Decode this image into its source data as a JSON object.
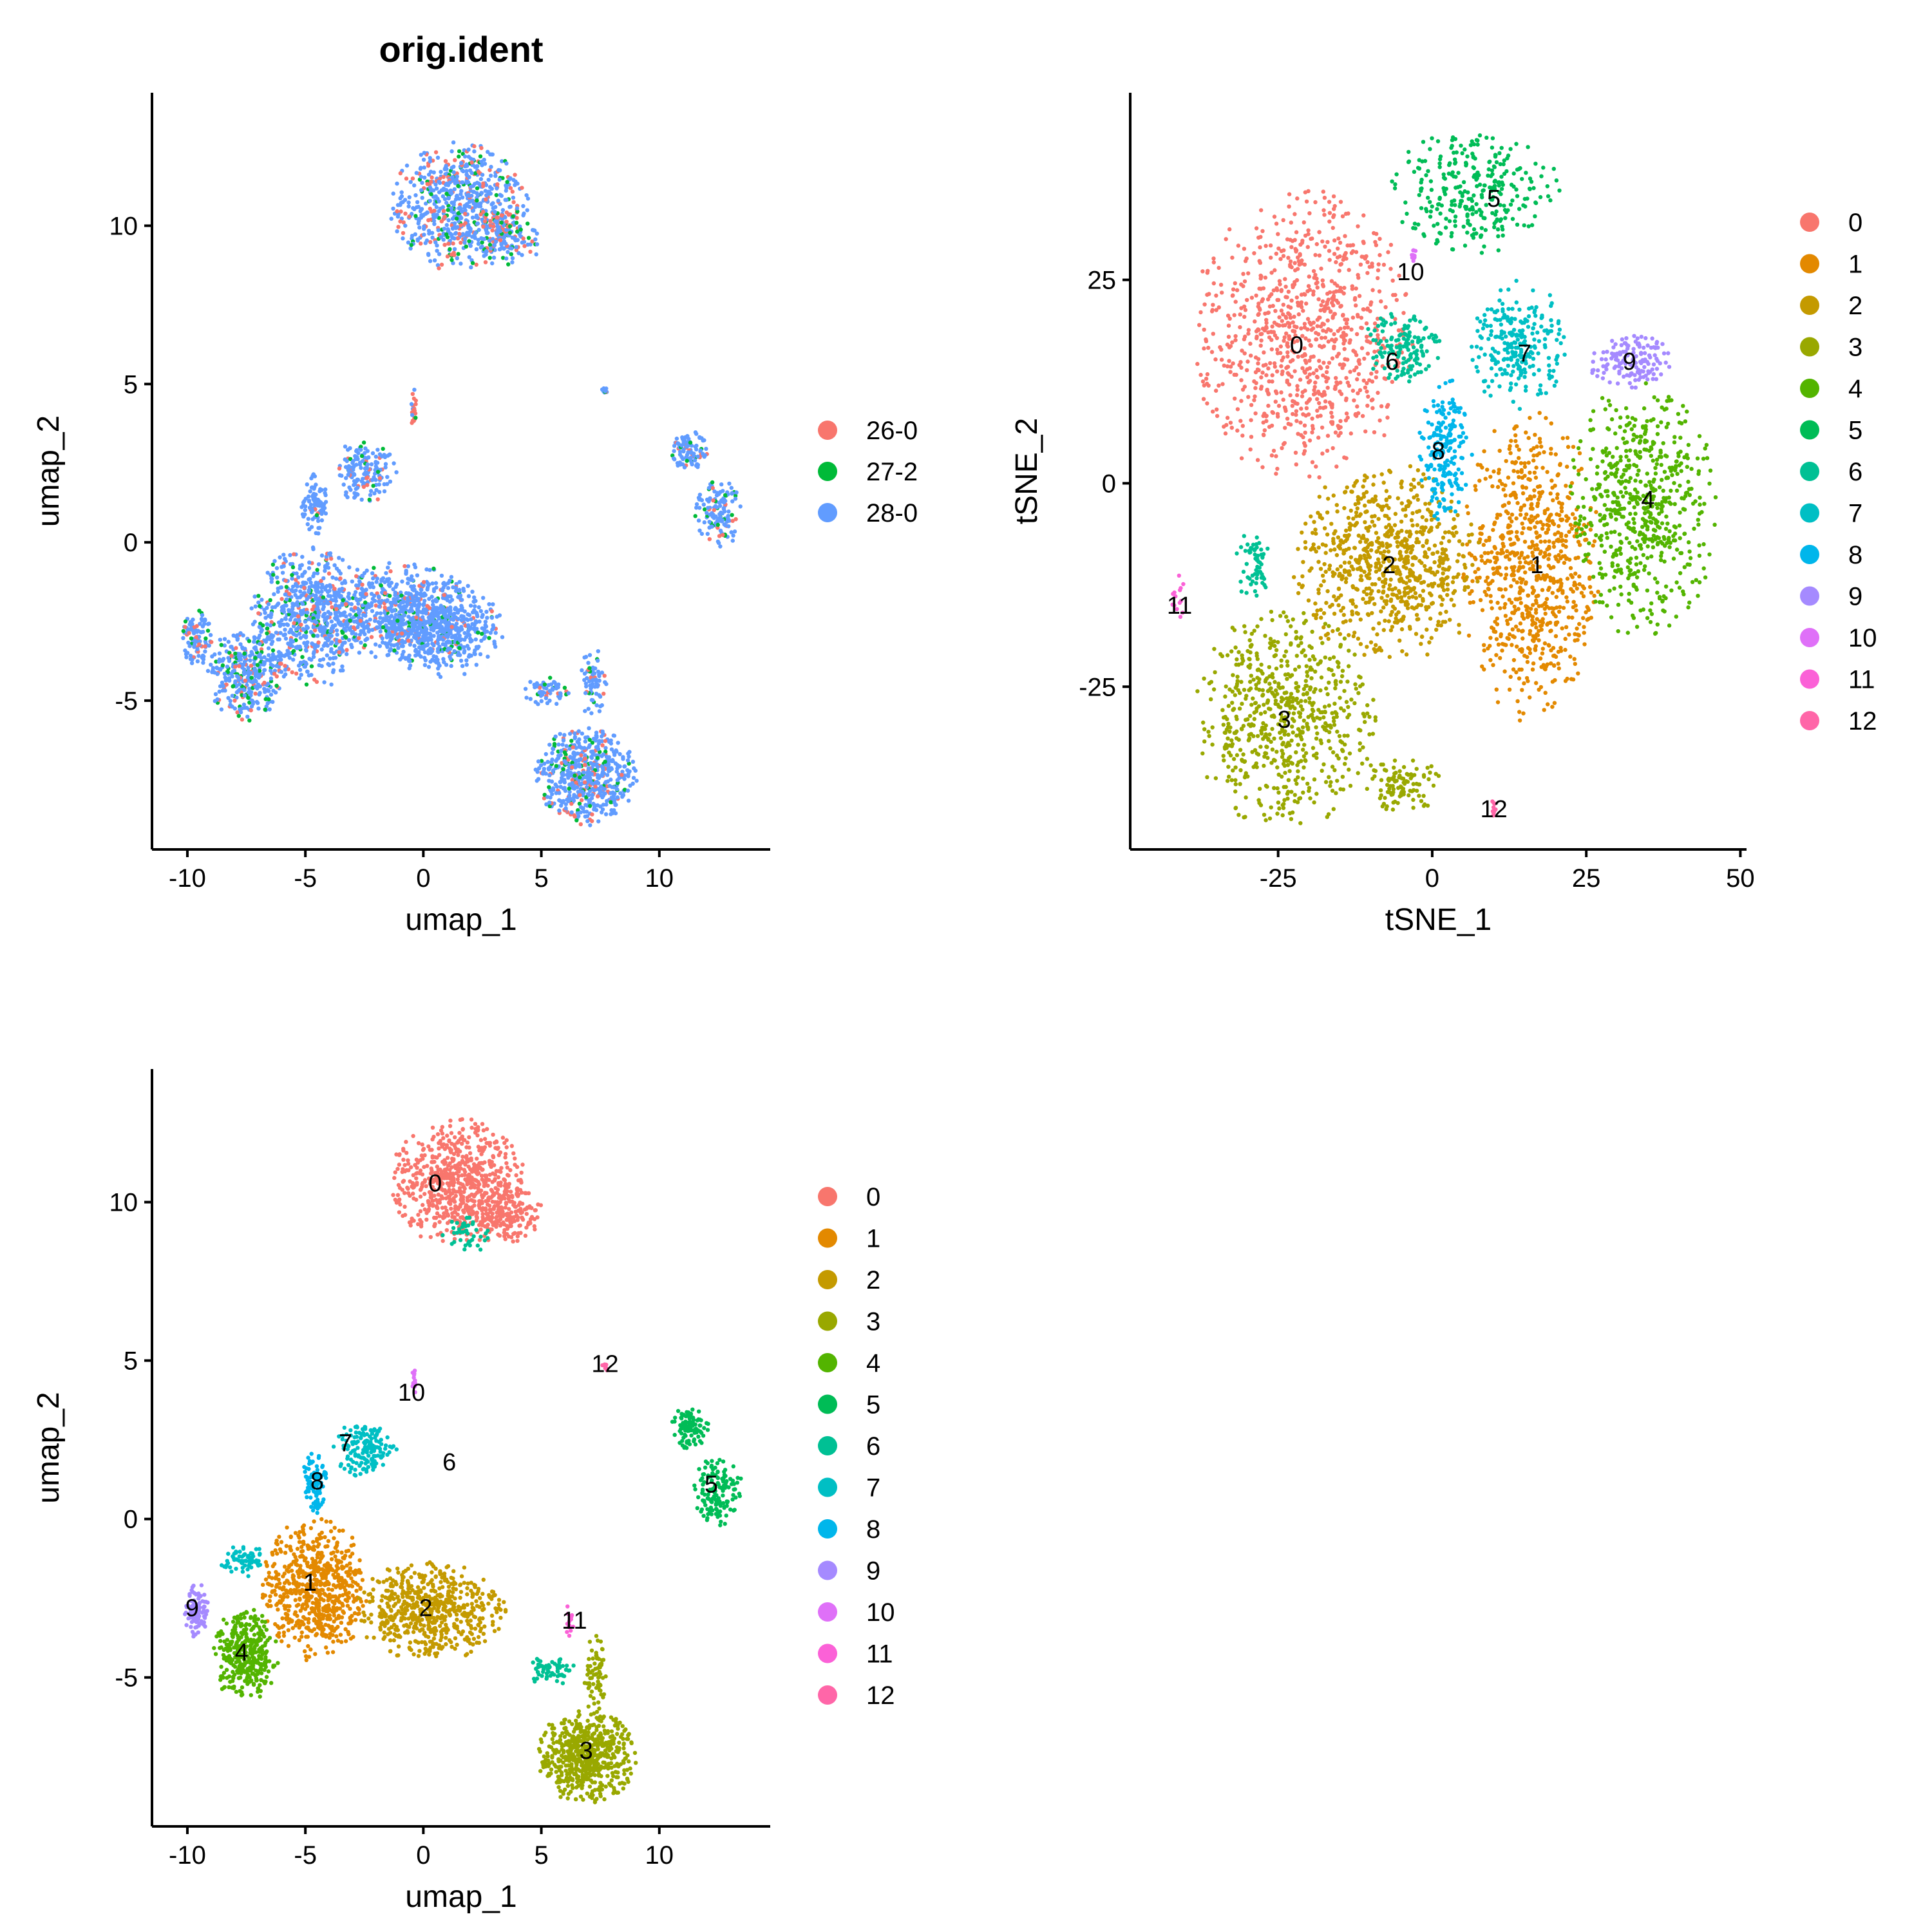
{
  "colors": {
    "c0": "#F8766D",
    "c1": "#E38900",
    "c2": "#C49A00",
    "c3": "#99A800",
    "c4": "#53B400",
    "c5": "#00BC56",
    "c6": "#00C094",
    "c7": "#00BFC4",
    "c8": "#00B6EB",
    "c9": "#06A4FF",
    "c10": "#A58AFF",
    "c11": "#DF70F8",
    "c12": "#FB61D7",
    "c13": "#FF66A8",
    "s26": "#F8766D",
    "s27": "#00BA38",
    "s28": "#619CFF"
  },
  "chart_data": [
    {
      "type": "scatter",
      "title": "orig.ident",
      "xlabel": "umap_1",
      "ylabel": "umap_2",
      "xlim": [
        -11.5,
        14.7
      ],
      "ylim": [
        -9.7,
        14.2
      ],
      "xticks": [
        -10,
        -5,
        0,
        5,
        10
      ],
      "xtick_labels": [
        "-10",
        "-5",
        "0",
        "5",
        "10"
      ],
      "yticks": [
        -5,
        0,
        5,
        10
      ],
      "ytick_labels": [
        "-5",
        "0",
        "5",
        "10"
      ],
      "legend_position": "right",
      "series": [
        {
          "name": "26-0",
          "color": "#F8766D"
        },
        {
          "name": "27-2",
          "color": "#00BA38"
        },
        {
          "name": "28-0",
          "color": "#619CFF"
        }
      ],
      "regions": [
        {
          "x": 1.5,
          "y": 10.6,
          "rx": 2.6,
          "ry": 1.8,
          "n": 700,
          "mix": [
            0.2,
            0.1,
            0.7
          ]
        },
        {
          "x": 3.5,
          "y": 9.6,
          "rx": 1.4,
          "ry": 0.8,
          "n": 160,
          "mix": [
            0.25,
            0.15,
            0.6
          ]
        },
        {
          "x": -2.5,
          "y": 2.2,
          "rx": 1.2,
          "ry": 0.9,
          "n": 160,
          "mix": [
            0.1,
            0.05,
            0.85
          ]
        },
        {
          "x": -4.6,
          "y": 1.2,
          "rx": 0.5,
          "ry": 0.9,
          "n": 90,
          "mix": [
            0.05,
            0.05,
            0.9
          ]
        },
        {
          "x": -4.8,
          "y": -2.4,
          "rx": 2.2,
          "ry": 2.0,
          "n": 650,
          "mix": [
            0.1,
            0.1,
            0.8
          ]
        },
        {
          "x": -7.5,
          "y": -4.2,
          "rx": 1.5,
          "ry": 1.3,
          "n": 350,
          "mix": [
            0.1,
            0.15,
            0.75
          ]
        },
        {
          "x": -9.6,
          "y": -3.0,
          "rx": 0.6,
          "ry": 0.8,
          "n": 100,
          "mix": [
            0.1,
            0.1,
            0.8
          ]
        },
        {
          "x": -1.2,
          "y": -2.2,
          "rx": 3.2,
          "ry": 1.4,
          "n": 600,
          "mix": [
            0.1,
            0.08,
            0.82
          ]
        },
        {
          "x": 0.8,
          "y": -2.8,
          "rx": 2.3,
          "ry": 1.3,
          "n": 500,
          "mix": [
            0.05,
            0.05,
            0.9
          ]
        },
        {
          "x": 6.9,
          "y": -7.4,
          "rx": 1.9,
          "ry": 1.4,
          "n": 600,
          "mix": [
            0.1,
            0.1,
            0.8
          ]
        },
        {
          "x": 7.2,
          "y": -4.5,
          "rx": 0.5,
          "ry": 1.0,
          "n": 70,
          "mix": [
            0.1,
            0.1,
            0.8
          ]
        },
        {
          "x": 5.2,
          "y": -4.7,
          "rx": 1.0,
          "ry": 0.4,
          "n": 60,
          "mix": [
            0.1,
            0.1,
            0.8
          ]
        },
        {
          "x": 11.3,
          "y": 2.9,
          "rx": 0.7,
          "ry": 0.6,
          "n": 100,
          "mix": [
            0.05,
            0.05,
            0.9
          ]
        },
        {
          "x": 12.5,
          "y": 0.9,
          "rx": 0.9,
          "ry": 1.0,
          "n": 140,
          "mix": [
            0.05,
            0.15,
            0.8
          ]
        },
        {
          "x": -0.4,
          "y": 4.2,
          "rx": 0.1,
          "ry": 0.6,
          "n": 22,
          "mix": [
            0.6,
            0.1,
            0.3
          ]
        },
        {
          "x": 7.7,
          "y": 4.8,
          "rx": 0.12,
          "ry": 0.15,
          "n": 10,
          "mix": [
            0.1,
            0.1,
            0.8
          ]
        }
      ]
    },
    {
      "type": "scatter",
      "xlabel": "tSNE_1",
      "ylabel": "tSNE_2",
      "xlim": [
        -49,
        51
      ],
      "ylim": [
        -45,
        48
      ],
      "xticks": [
        -25,
        0,
        25,
        50
      ],
      "xtick_labels": [
        "-25",
        "0",
        "25",
        "50"
      ],
      "yticks": [
        -25,
        0,
        25
      ],
      "ytick_labels": [
        "-25",
        "0",
        "25"
      ],
      "legend_position": "right",
      "series": [
        {
          "name": "0",
          "color": "#F8766D"
        },
        {
          "name": "1",
          "color": "#E38900"
        },
        {
          "name": "2",
          "color": "#C49A00"
        },
        {
          "name": "3",
          "color": "#99A800"
        },
        {
          "name": "4",
          "color": "#53B400"
        },
        {
          "name": "5",
          "color": "#00BC56"
        },
        {
          "name": "6",
          "color": "#00C094"
        },
        {
          "name": "7",
          "color": "#00BFC4"
        },
        {
          "name": "8",
          "color": "#00B6EB"
        },
        {
          "name": "9",
          "color": "#A58AFF"
        },
        {
          "name": "10",
          "color": "#DF70F8"
        },
        {
          "name": "11",
          "color": "#FB61D7"
        },
        {
          "name": "12",
          "color": "#FF66A8"
        }
      ],
      "regions": [
        {
          "c": 0,
          "x": -21,
          "y": 18,
          "rx": 16,
          "ry": 16,
          "n": 900
        },
        {
          "c": 1,
          "x": 16,
          "y": -10,
          "rx": 10,
          "ry": 17,
          "n": 750
        },
        {
          "c": 2,
          "x": -7,
          "y": -10,
          "rx": 14,
          "ry": 11,
          "n": 750
        },
        {
          "c": 3,
          "x": -24,
          "y": -29,
          "rx": 13,
          "ry": 12,
          "n": 650
        },
        {
          "c": 3,
          "x": -5,
          "y": -37,
          "rx": 6,
          "ry": 3,
          "n": 100
        },
        {
          "c": 4,
          "x": 34,
          "y": -3,
          "rx": 11,
          "ry": 14,
          "n": 600
        },
        {
          "c": 5,
          "x": 7,
          "y": 36,
          "rx": 12,
          "ry": 7,
          "n": 300
        },
        {
          "c": 6,
          "x": -5,
          "y": 17,
          "rx": 6,
          "ry": 4,
          "n": 140
        },
        {
          "c": 6,
          "x": -29,
          "y": -10,
          "rx": 2.5,
          "ry": 4,
          "n": 60
        },
        {
          "c": 7,
          "x": 14,
          "y": 17,
          "rx": 7,
          "ry": 7,
          "n": 250
        },
        {
          "c": 8,
          "x": 2,
          "y": 4,
          "rx": 4,
          "ry": 8,
          "n": 200
        },
        {
          "c": 9,
          "x": 32,
          "y": 15,
          "rx": 6,
          "ry": 3,
          "n": 140
        },
        {
          "c": 10,
          "x": -3,
          "y": 28,
          "rx": 0.3,
          "ry": 1.2,
          "n": 12
        },
        {
          "c": 11,
          "x": -41,
          "y": -14,
          "rx": 1.4,
          "ry": 2.5,
          "n": 14
        },
        {
          "c": 12,
          "x": 10,
          "y": -40,
          "rx": 0.3,
          "ry": 1.2,
          "n": 10
        }
      ],
      "labels": [
        {
          "text": "0",
          "x": -22,
          "y": 17
        },
        {
          "text": "1",
          "x": 17,
          "y": -10
        },
        {
          "text": "2",
          "x": -7,
          "y": -10
        },
        {
          "text": "3",
          "x": -24,
          "y": -29
        },
        {
          "text": "4",
          "x": 35,
          "y": -2
        },
        {
          "text": "5",
          "x": 10,
          "y": 35
        },
        {
          "text": "6",
          "x": -6.5,
          "y": 15
        },
        {
          "text": "7",
          "x": 15,
          "y": 16
        },
        {
          "text": "8",
          "x": 1,
          "y": 4
        },
        {
          "text": "9",
          "x": 32,
          "y": 15
        },
        {
          "text": "10",
          "x": -3.5,
          "y": 26
        },
        {
          "text": "11",
          "x": -41,
          "y": -15
        },
        {
          "text": "12",
          "x": 10,
          "y": -40
        }
      ]
    },
    {
      "type": "scatter",
      "xlabel": "umap_1",
      "ylabel": "umap_2",
      "xlim": [
        -11.5,
        14.7
      ],
      "ylim": [
        -9.7,
        14.2
      ],
      "xticks": [
        -10,
        -5,
        0,
        5,
        10
      ],
      "xtick_labels": [
        "-10",
        "-5",
        "0",
        "5",
        "10"
      ],
      "yticks": [
        -5,
        0,
        5,
        10
      ],
      "ytick_labels": [
        "-5",
        "0",
        "5",
        "10"
      ],
      "legend_position": "right",
      "series": [
        {
          "name": "0",
          "color": "#F8766D"
        },
        {
          "name": "1",
          "color": "#E38900"
        },
        {
          "name": "2",
          "color": "#C49A00"
        },
        {
          "name": "3",
          "color": "#99A800"
        },
        {
          "name": "4",
          "color": "#53B400"
        },
        {
          "name": "5",
          "color": "#00BC56"
        },
        {
          "name": "6",
          "color": "#00C094"
        },
        {
          "name": "7",
          "color": "#00BFC4"
        },
        {
          "name": "8",
          "color": "#00B6EB"
        },
        {
          "name": "9",
          "color": "#A58AFF"
        },
        {
          "name": "10",
          "color": "#DF70F8"
        },
        {
          "name": "11",
          "color": "#FB61D7"
        },
        {
          "name": "12",
          "color": "#FF66A8"
        }
      ],
      "regions": [
        {
          "c": 0,
          "x": 1.5,
          "y": 10.6,
          "rx": 2.6,
          "ry": 1.8,
          "n": 700
        },
        {
          "c": 0,
          "x": 3.5,
          "y": 9.6,
          "rx": 1.4,
          "ry": 0.8,
          "n": 160
        },
        {
          "c": 6,
          "x": 1.8,
          "y": 9.0,
          "rx": 0.9,
          "ry": 0.6,
          "n": 40
        },
        {
          "c": 1,
          "x": -4.6,
          "y": -2.2,
          "rx": 2.0,
          "ry": 2.0,
          "n": 650
        },
        {
          "c": 4,
          "x": -7.5,
          "y": -4.3,
          "rx": 1.3,
          "ry": 1.3,
          "n": 350
        },
        {
          "c": 9,
          "x": -9.6,
          "y": -2.9,
          "rx": 0.5,
          "ry": 0.8,
          "n": 100
        },
        {
          "c": 7,
          "x": -7.6,
          "y": -1.3,
          "rx": 0.9,
          "ry": 0.5,
          "n": 70
        },
        {
          "c": 2,
          "x": 0.3,
          "y": -2.9,
          "rx": 2.8,
          "ry": 1.4,
          "n": 600
        },
        {
          "c": 3,
          "x": 6.9,
          "y": -7.5,
          "rx": 1.9,
          "ry": 1.3,
          "n": 600
        },
        {
          "c": 3,
          "x": 7.3,
          "y": -5.0,
          "rx": 0.5,
          "ry": 1.2,
          "n": 70
        },
        {
          "c": 6,
          "x": 5.4,
          "y": -4.8,
          "rx": 1.0,
          "ry": 0.4,
          "n": 60
        },
        {
          "c": 5,
          "x": 11.3,
          "y": 2.9,
          "rx": 0.7,
          "ry": 0.6,
          "n": 100
        },
        {
          "c": 5,
          "x": 12.5,
          "y": 0.9,
          "rx": 0.9,
          "ry": 1.0,
          "n": 140
        },
        {
          "c": 7,
          "x": -2.5,
          "y": 2.2,
          "rx": 1.2,
          "ry": 0.8,
          "n": 160
        },
        {
          "c": 8,
          "x": -4.6,
          "y": 1.2,
          "rx": 0.5,
          "ry": 0.9,
          "n": 90
        },
        {
          "c": 10,
          "x": -0.4,
          "y": 4.3,
          "rx": 0.1,
          "ry": 0.5,
          "n": 14
        },
        {
          "c": 11,
          "x": 6.2,
          "y": -3.2,
          "rx": 0.15,
          "ry": 0.5,
          "n": 14
        },
        {
          "c": 12,
          "x": 7.7,
          "y": 4.8,
          "rx": 0.1,
          "ry": 0.15,
          "n": 10
        }
      ],
      "labels": [
        {
          "text": "0",
          "x": 0.5,
          "y": 10.6
        },
        {
          "text": "1",
          "x": -4.8,
          "y": -2.0
        },
        {
          "text": "2",
          "x": 0.1,
          "y": -2.8
        },
        {
          "text": "3",
          "x": 6.9,
          "y": -7.3
        },
        {
          "text": "4",
          "x": -7.7,
          "y": -4.2
        },
        {
          "text": "5",
          "x": 12.2,
          "y": 1.1
        },
        {
          "text": "6",
          "x": 1.1,
          "y": 1.8
        },
        {
          "text": "7",
          "x": -3.3,
          "y": 2.4
        },
        {
          "text": "8",
          "x": -4.5,
          "y": 1.2
        },
        {
          "text": "9",
          "x": -9.8,
          "y": -2.8
        },
        {
          "text": "10",
          "x": -0.5,
          "y": 4.0
        },
        {
          "text": "11",
          "x": 6.4,
          "y": -3.2
        },
        {
          "text": "12",
          "x": 7.7,
          "y": 4.9
        }
      ]
    }
  ]
}
